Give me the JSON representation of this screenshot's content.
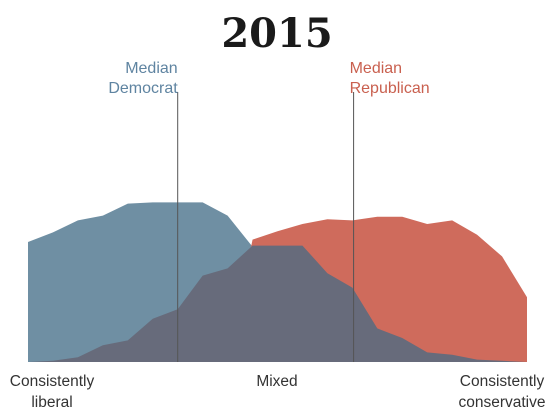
{
  "chart_data": {
    "type": "area",
    "title": "2015",
    "x_tick_labels": [
      {
        "lines": [
          "Consistently",
          "liberal"
        ]
      },
      {
        "lines": [
          "Mixed"
        ]
      },
      {
        "lines": [
          "Consistently",
          "conservative"
        ]
      }
    ],
    "x": [
      0,
      1,
      2,
      3,
      4,
      5,
      6,
      7,
      8,
      9,
      10,
      11,
      12,
      13,
      14,
      15,
      16,
      17,
      18,
      19,
      20
    ],
    "series": [
      {
        "key": "dem",
        "color": "#6f8fa3",
        "values": [
          50,
          54,
          59,
          61,
          66,
          66.5,
          66.5,
          66.5,
          61,
          48,
          0,
          0,
          0,
          0,
          0,
          0,
          0,
          0,
          0,
          0,
          0
        ]
      },
      {
        "key": "rep",
        "color": "#cf6b5c",
        "values": [
          0,
          0,
          0,
          0,
          0,
          0,
          0,
          0,
          0,
          51,
          54.5,
          57.5,
          59.5,
          59,
          60.5,
          60.5,
          57.5,
          59,
          53,
          44,
          27
        ]
      },
      {
        "key": "overlap",
        "color": "#676b7b",
        "values": [
          0,
          0.5,
          2,
          7,
          9,
          18,
          22,
          36,
          39,
          48.5,
          48.5,
          48.5,
          37,
          31,
          14,
          10,
          4,
          3,
          1,
          0.5,
          0
        ]
      }
    ],
    "medians": [
      {
        "label_lines": [
          "Median",
          "Democrat"
        ],
        "x": 6,
        "color": "#5f84a1"
      },
      {
        "label_lines": [
          "Median",
          "Republican"
        ],
        "x": 13.05,
        "color": "#c9604f"
      }
    ],
    "ylim": [
      0,
      100
    ],
    "grid": false,
    "legend": "none"
  }
}
